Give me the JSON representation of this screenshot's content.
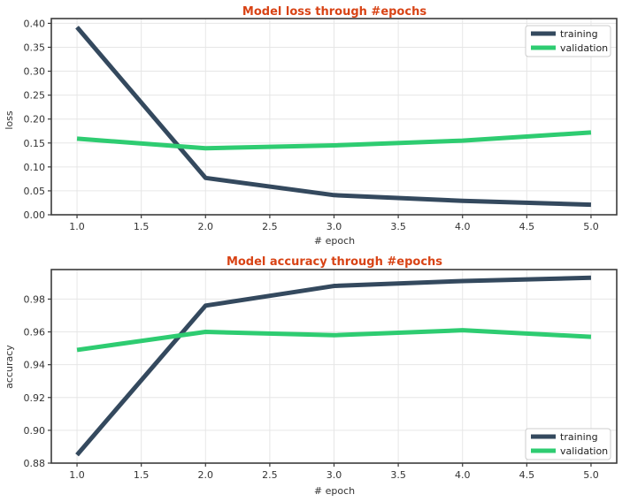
{
  "chart_data": [
    {
      "type": "line",
      "title": "Model loss through #epochs",
      "xlabel": "# epoch",
      "ylabel": "loss",
      "x": [
        1,
        2,
        3,
        4,
        5
      ],
      "xticks": [
        1.0,
        1.5,
        2.0,
        2.5,
        3.0,
        3.5,
        4.0,
        4.5,
        5.0
      ],
      "xtick_labels": [
        "1.0",
        "1.5",
        "2.0",
        "2.5",
        "3.0",
        "3.5",
        "4.0",
        "4.5",
        "5.0"
      ],
      "xlim": [
        0.8,
        5.2
      ],
      "yticks": [
        0.0,
        0.05,
        0.1,
        0.15,
        0.2,
        0.25,
        0.3,
        0.35,
        0.4
      ],
      "ytick_labels": [
        "0.00",
        "0.05",
        "0.10",
        "0.15",
        "0.20",
        "0.25",
        "0.30",
        "0.35",
        "0.40"
      ],
      "ylim": [
        0.0,
        0.41
      ],
      "grid": true,
      "legend_position": "top-right",
      "series": [
        {
          "name": "training",
          "color": "#34495e",
          "values": [
            0.392,
            0.077,
            0.041,
            0.029,
            0.021
          ]
        },
        {
          "name": "validation",
          "color": "#2ecc71",
          "values": [
            0.159,
            0.139,
            0.145,
            0.155,
            0.172
          ]
        }
      ]
    },
    {
      "type": "line",
      "title": "Model accuracy through #epochs",
      "xlabel": "# epoch",
      "ylabel": "accuracy",
      "x": [
        1,
        2,
        3,
        4,
        5
      ],
      "xticks": [
        1.0,
        1.5,
        2.0,
        2.5,
        3.0,
        3.5,
        4.0,
        4.5,
        5.0
      ],
      "xtick_labels": [
        "1.0",
        "1.5",
        "2.0",
        "2.5",
        "3.0",
        "3.5",
        "4.0",
        "4.5",
        "5.0"
      ],
      "xlim": [
        0.8,
        5.2
      ],
      "yticks": [
        0.88,
        0.9,
        0.92,
        0.94,
        0.96,
        0.98
      ],
      "ytick_labels": [
        "0.88",
        "0.90",
        "0.92",
        "0.94",
        "0.96",
        "0.98"
      ],
      "ylim": [
        0.88,
        0.998
      ],
      "grid": true,
      "legend_position": "bottom-right",
      "series": [
        {
          "name": "training",
          "color": "#34495e",
          "values": [
            0.885,
            0.976,
            0.988,
            0.991,
            0.993
          ]
        },
        {
          "name": "validation",
          "color": "#2ecc71",
          "values": [
            0.949,
            0.96,
            0.958,
            0.961,
            0.957
          ]
        }
      ]
    }
  ],
  "title_color": "#d84315"
}
